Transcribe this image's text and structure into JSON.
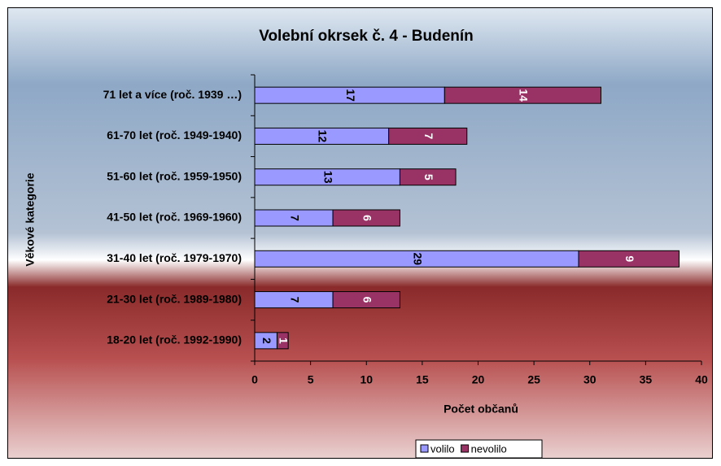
{
  "chart_data": {
    "type": "stacked-barh",
    "title": "Volební okrsek č. 4 - Budenín",
    "xlabel": "Počet občanů",
    "ylabel": "Věkové kategorie",
    "categories": [
      "71 let a více (roč. 1939 …)",
      "61-70 let (roč. 1949-1940)",
      "51-60 let (roč. 1959-1950)",
      "41-50 let (roč. 1969-1960)",
      "31-40 let (roč. 1979-1970)",
      "21-30 let (roč. 1989-1980)",
      "18-20 let (roč. 1992-1990)"
    ],
    "series": [
      {
        "name": "volilo",
        "color": "#9999ff",
        "values": [
          17,
          12,
          13,
          7,
          29,
          7,
          2
        ]
      },
      {
        "name": "nevolilo",
        "color": "#993366",
        "values": [
          14,
          7,
          5,
          6,
          9,
          6,
          1
        ]
      }
    ],
    "xlim": [
      0,
      40
    ],
    "xticks": [
      0,
      5,
      10,
      15,
      20,
      25,
      30,
      35,
      40
    ],
    "legend": "bottom"
  }
}
